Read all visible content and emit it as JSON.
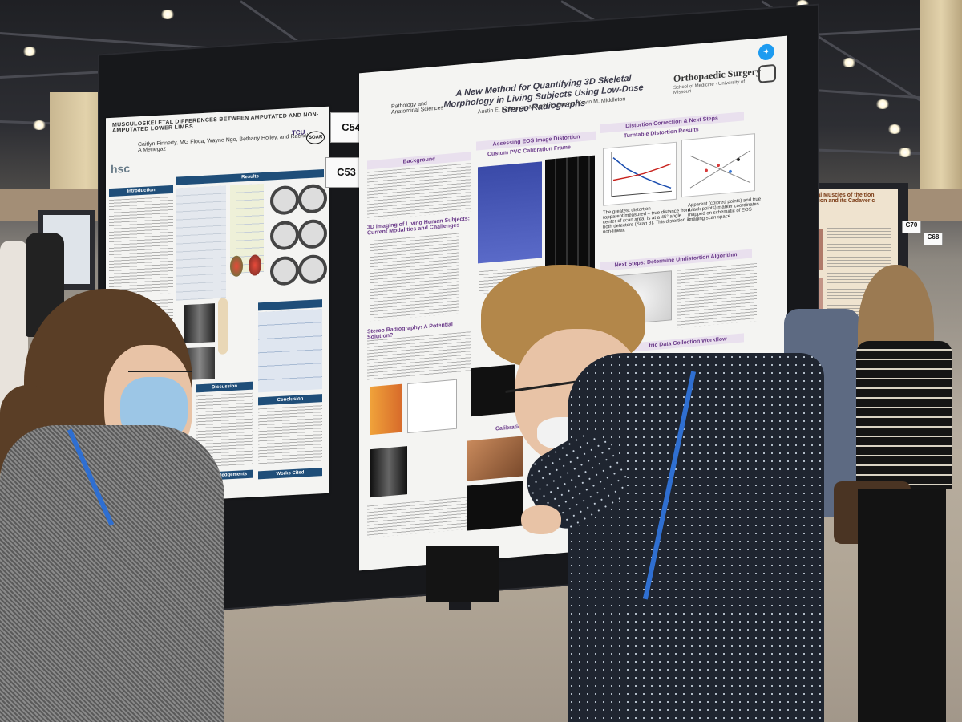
{
  "scene": {
    "colors": {
      "board": "#17181b",
      "section_blue": "#1f4e79",
      "section_purple": "#6b3b8a",
      "shirt": "#1f2530",
      "lanyard": "#2f6fd1"
    }
  },
  "booth_tags": {
    "upper": "C54",
    "lower": "C53"
  },
  "poster_left": {
    "title": "MUSCULOSKELETAL DIFFERENCES BETWEEN AMPUTATED AND NON-AMPUTATED LOWER LIMBS",
    "authors": "Caitlyn Finnerty, MG Fioca, Wayne Ngo, Bethany Holley, and Rachel A Menegaz",
    "logo_hsc": "hsc",
    "logo_tcu": "TCU",
    "logo_soar": "SOAR",
    "sections": {
      "introduction": "Introduction",
      "results": "Results",
      "discussion": "Discussion",
      "conclusion": "Conclusion",
      "acknowledgements": "Acknowledgements",
      "works_cited": "Works Cited"
    }
  },
  "poster_right": {
    "dept": "Pathology and Anatomical Sciences",
    "title": "A New Method for Quantifying 3D Skeletal Morphology in Living Subjects Using Low-Dose Stereo Radiographs",
    "authors": "Austin E. Lawrence, Melanie E. Boeyer, Kevin M. Middleton",
    "logo_right": "Orthopaedic Surgery",
    "logo_right_sub": "School of Medicine · University of Missouri",
    "sections": {
      "background": "Background",
      "assessing": "Assessing EOS Image Distortion",
      "custom_frame": "Custom PVC Calibration Frame",
      "distortion": "Distortion Correction & Next Steps",
      "turntable": "Turntable Distortion Results",
      "next_steps": "Next Steps: Determine Undistortion Algorithm",
      "stereo": "Stereo Radiography: A Potential Solution?",
      "imaging": "3D Imaging of Living Human Subjects: Current Modalities and Challenges",
      "workflow": "tric Data Collection Workflow",
      "calibration": "Calibration"
    },
    "captions": {
      "apparent": "Apparent (colored points) and true (black points) marker coordinates mapped on schematic of EOS imaging scan space.",
      "greatest": "The greatest distortion (apparent/measured – true distance from center of scan area) is at a 45° angle both detectors (Scan 3). This distortion is non-linear."
    }
  },
  "right_poster_far": {
    "title": "umbrical Muscles of the tion, Innovation and its Cadaveric Study",
    "tags": [
      "C70",
      "C68"
    ]
  }
}
